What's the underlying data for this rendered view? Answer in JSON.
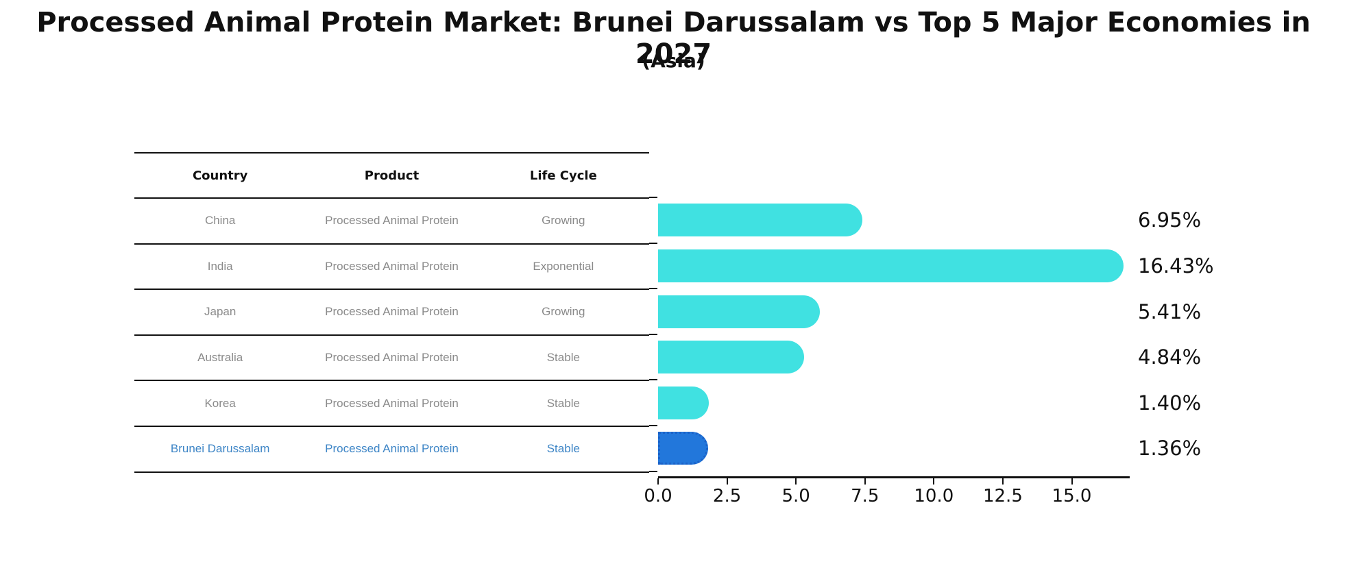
{
  "title": "Processed Animal Protein Market: Brunei Darussalam vs Top 5 Major Economies in 2027",
  "subtitle": "(Asia)",
  "table": {
    "headers": [
      "Country",
      "Product",
      "Life Cycle"
    ],
    "rows": [
      {
        "country": "China",
        "product": "Processed Animal Protein",
        "life_cycle": "Growing",
        "highlight": false
      },
      {
        "country": "India",
        "product": "Processed Animal Protein",
        "life_cycle": "Exponential",
        "highlight": false
      },
      {
        "country": "Japan",
        "product": "Processed Animal Protein",
        "life_cycle": "Growing",
        "highlight": false
      },
      {
        "country": "Australia",
        "product": "Processed Animal Protein",
        "life_cycle": "Stable",
        "highlight": false
      },
      {
        "country": "Korea",
        "product": "Processed Animal Protein",
        "life_cycle": "Stable",
        "highlight": false
      },
      {
        "country": "Brunei Darussalam",
        "product": "Processed Animal Protein",
        "life_cycle": "Stable",
        "highlight": true
      }
    ]
  },
  "chart_data": {
    "type": "bar",
    "orientation": "horizontal",
    "title": "Processed Animal Protein Market: Brunei Darussalam vs Top 5 Major Economies in 2027",
    "subtitle": "(Asia)",
    "categories": [
      "China",
      "India",
      "Japan",
      "Australia",
      "Korea",
      "Brunei Darussalam"
    ],
    "values": [
      6.95,
      16.43,
      5.41,
      4.84,
      1.4,
      1.36
    ],
    "value_labels": [
      "6.95%",
      "16.43%",
      "5.41%",
      "4.84%",
      "1.40%",
      "1.36%"
    ],
    "xlabel": "",
    "ylabel": "",
    "xlim": [
      0,
      17.1
    ],
    "xticks": [
      0.0,
      2.5,
      5.0,
      7.5,
      10.0,
      12.5,
      15.0
    ],
    "xtick_labels": [
      "0.0",
      "2.5",
      "5.0",
      "7.5",
      "10.0",
      "12.5",
      "15.0"
    ],
    "grid": false,
    "legend": false,
    "bar_color": "#40E1E1",
    "highlight_index": 5,
    "highlight_color": "#2277DB",
    "highlight_border_color": "#1B62C8",
    "highlight_text_color": "#3D85C6"
  },
  "colors": {
    "text": "#111111",
    "muted_text": "#8A8A8A",
    "background": "#FFFFFF"
  }
}
